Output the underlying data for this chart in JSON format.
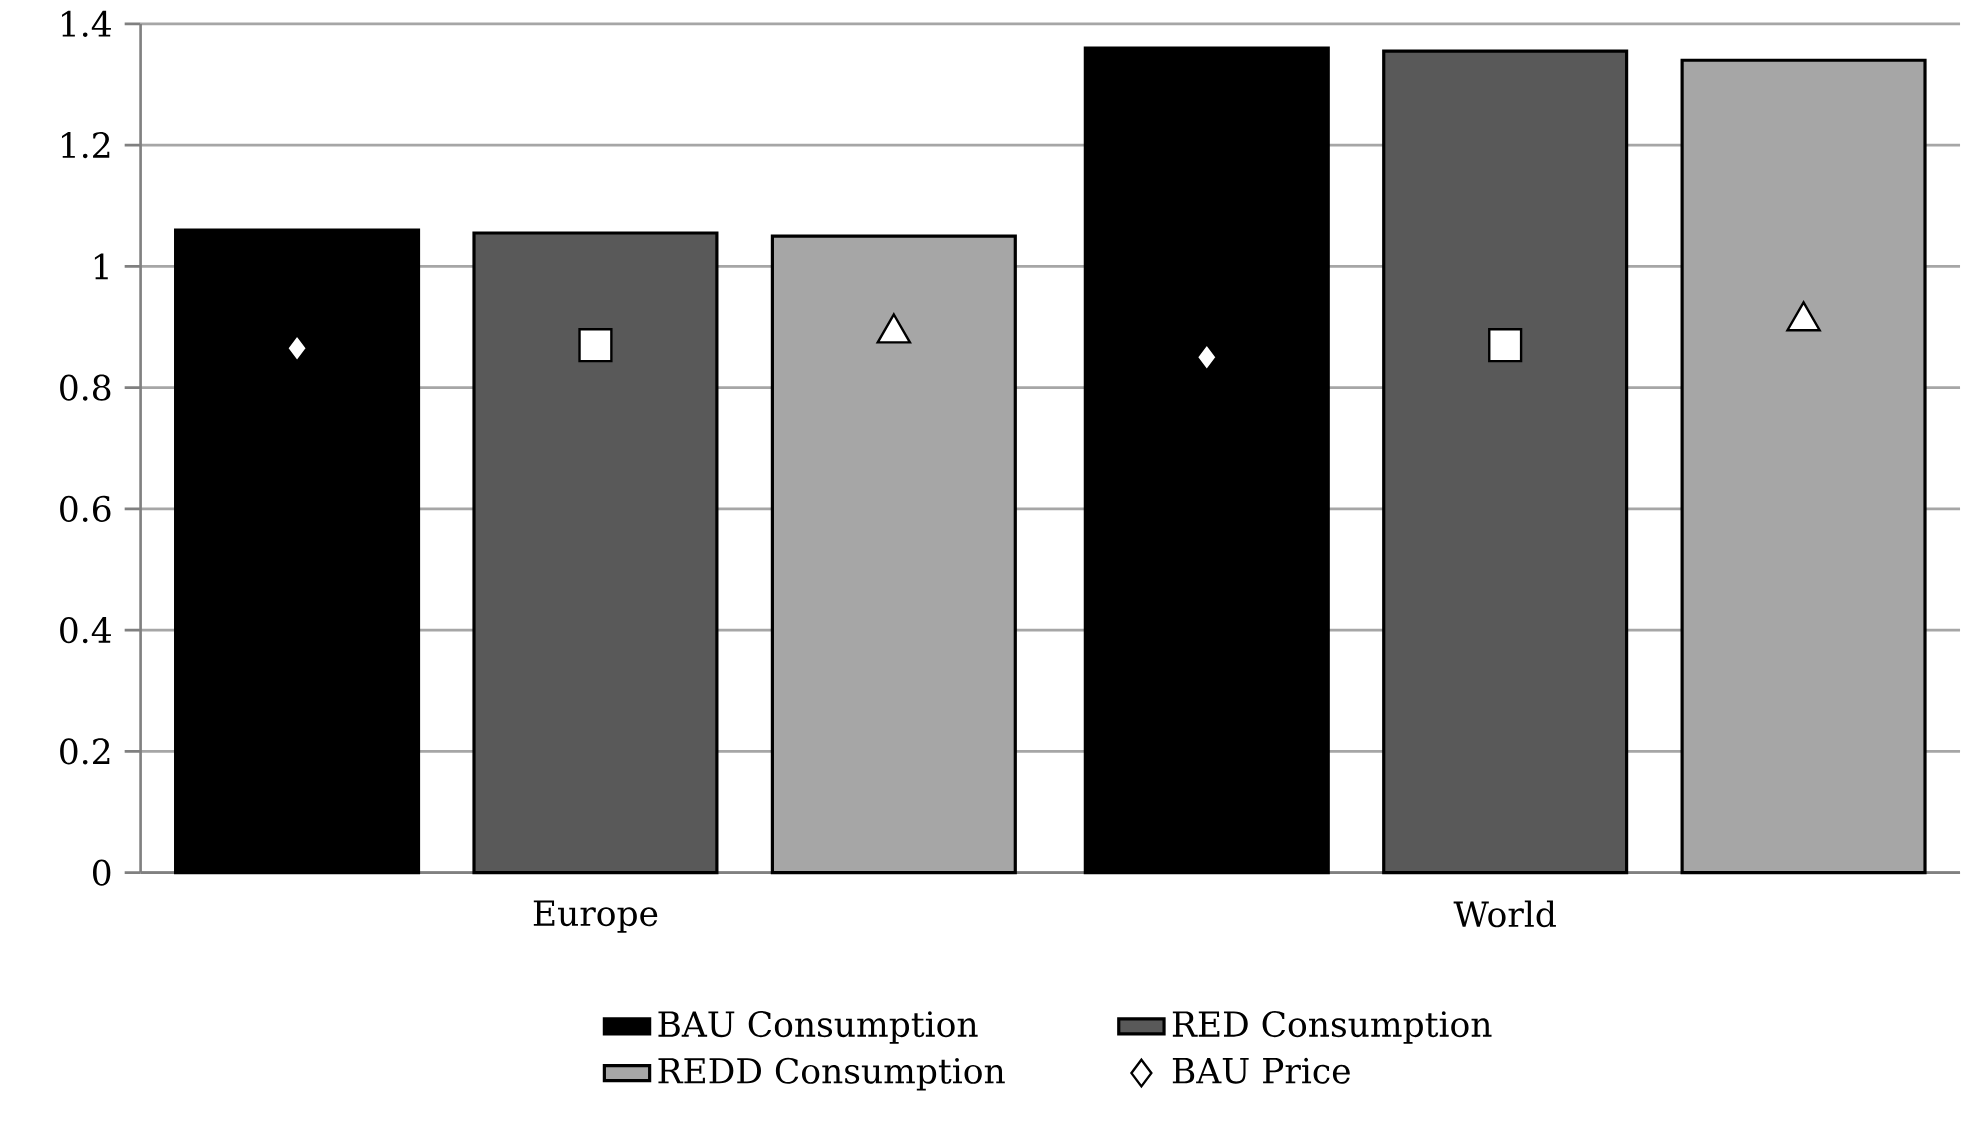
{
  "chart_data": {
    "type": "bar",
    "categories": [
      "Europe",
      "World"
    ],
    "series": [
      {
        "name": "BAU Consumption",
        "color": "#000000",
        "values": [
          1.06,
          1.36
        ]
      },
      {
        "name": "RED Consumption",
        "color": "#595959",
        "values": [
          1.055,
          1.355
        ]
      },
      {
        "name": "REDD Consumption",
        "color": "#a6a6a6",
        "values": [
          1.05,
          1.34
        ]
      },
      {
        "name": "BAU Price",
        "type": "scatter",
        "marker": "diamond",
        "color": "#ffffff",
        "x": [
          "Europe",
          "World"
        ],
        "values": [
          0.865,
          0.85
        ]
      },
      {
        "type": "scatter",
        "marker": "square",
        "color": "#ffffff",
        "x": [
          "Europe",
          "World"
        ],
        "values": [
          0.87,
          0.87
        ]
      },
      {
        "type": "scatter",
        "marker": "triangle",
        "color": "#ffffff",
        "x": [
          "Europe",
          "World"
        ],
        "values": [
          0.89,
          0.91
        ]
      }
    ],
    "ylim": [
      0,
      1.4
    ],
    "yticks": [
      0,
      0.2,
      0.4,
      0.6,
      0.8,
      1,
      1.2,
      1.4
    ],
    "grid": "y",
    "legend": "bottom"
  }
}
